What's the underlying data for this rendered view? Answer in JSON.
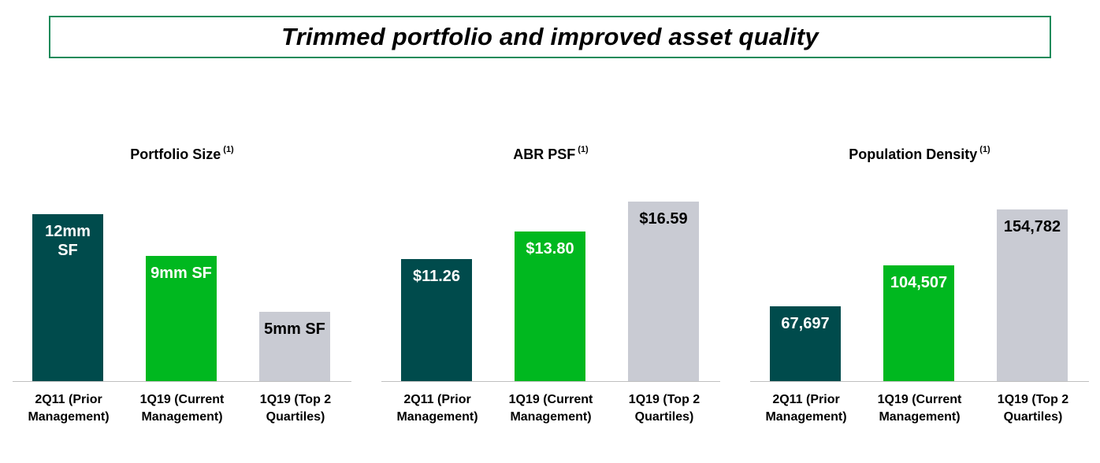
{
  "header": {
    "title": "Trimmed portfolio and improved asset quality"
  },
  "categories": [
    "2Q11 (Prior Management)",
    "1Q19 (Current Management)",
    "1Q19 (Top 2 Quartiles)"
  ],
  "colors": {
    "prior": "#004b4c",
    "current": "#00b81f",
    "top2": "#c9cbd3",
    "border": "#1a8a5a"
  },
  "chart_data": [
    {
      "type": "bar",
      "title": "Portfolio Size",
      "footnote": "(1)",
      "categories": [
        "2Q11 (Prior Management)",
        "1Q19 (Current Management)",
        "1Q19 (Top 2 Quartiles)"
      ],
      "values": [
        12,
        9,
        5
      ],
      "unit": "mm SF",
      "data_labels": [
        "12mm SF",
        "9mm SF",
        "5mm SF"
      ]
    },
    {
      "type": "bar",
      "title": "ABR PSF",
      "footnote": "(1)",
      "categories": [
        "2Q11 (Prior Management)",
        "1Q19 (Current Management)",
        "1Q19 (Top 2 Quartiles)"
      ],
      "values": [
        11.26,
        13.8,
        16.59
      ],
      "data_labels": [
        "$11.26",
        "$13.80",
        "$16.59"
      ]
    },
    {
      "type": "bar",
      "title": "Population Density",
      "footnote": "(1)",
      "categories": [
        "2Q11 (Prior Management)",
        "1Q19 (Current Management)",
        "1Q19 (Top 2 Quartiles)"
      ],
      "values": [
        67697,
        104507,
        154782
      ],
      "data_labels": [
        "67,697",
        "104,507",
        "154,782"
      ]
    }
  ]
}
